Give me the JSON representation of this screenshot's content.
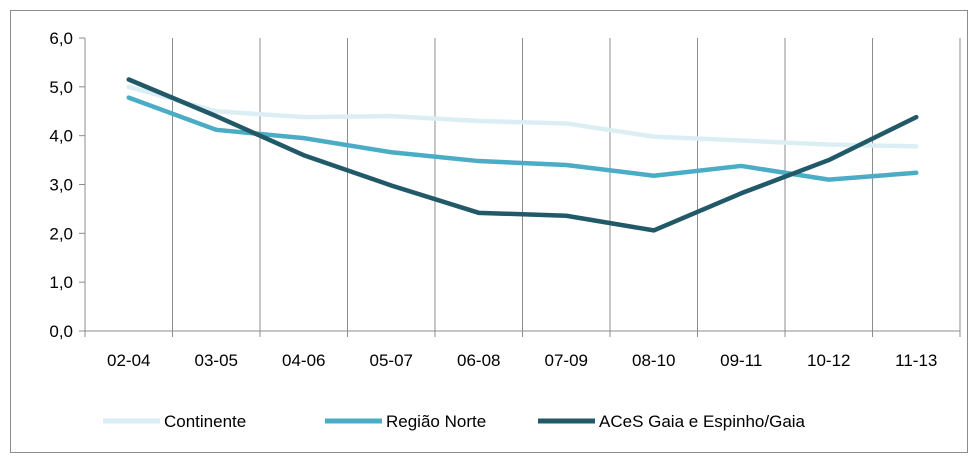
{
  "chart_data": {
    "type": "line",
    "title": "",
    "xlabel": "",
    "ylabel": "",
    "categories": [
      "02-04",
      "03-05",
      "04-06",
      "05-07",
      "06-08",
      "07-09",
      "08-10",
      "09-11",
      "10-12",
      "11-13"
    ],
    "ylim": [
      0,
      6
    ],
    "yticks": [
      "0,0",
      "1,0",
      "2,0",
      "3,0",
      "4,0",
      "5,0",
      "6,0"
    ],
    "grid": "vertical",
    "legend": "bottom",
    "series": [
      {
        "name": "Continente",
        "color": "#dbeef4",
        "values": [
          5.0,
          4.5,
          4.38,
          4.4,
          4.3,
          4.25,
          3.98,
          3.9,
          3.82,
          3.78
        ]
      },
      {
        "name": "Região Norte",
        "color": "#4bacc6",
        "values": [
          4.78,
          4.12,
          3.95,
          3.66,
          3.48,
          3.4,
          3.18,
          3.38,
          3.1,
          3.24
        ]
      },
      {
        "name": "ACeS Gaia e Espinho/Gaia",
        "color": "#215968",
        "values": [
          5.15,
          4.4,
          3.6,
          2.98,
          2.42,
          2.36,
          2.06,
          2.82,
          3.5,
          4.38
        ]
      }
    ]
  }
}
